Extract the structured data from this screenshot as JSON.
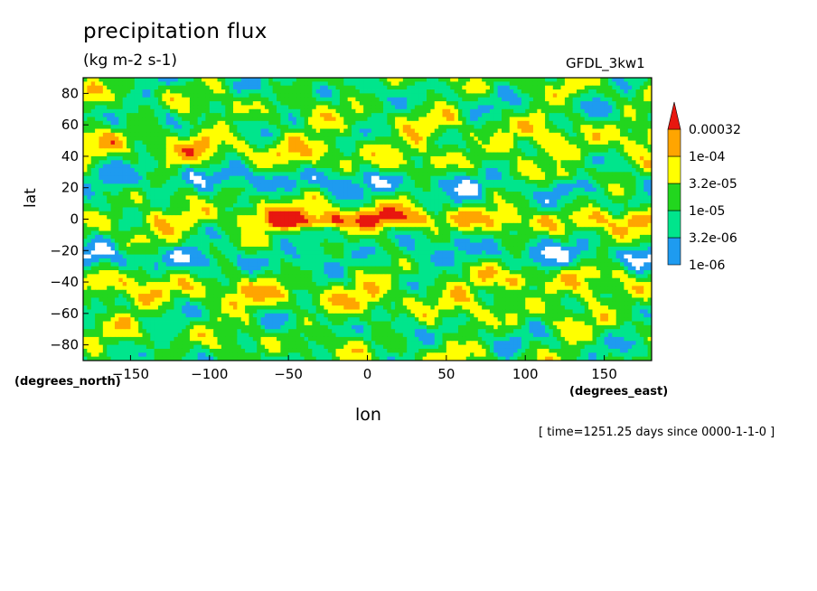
{
  "chart_data": {
    "type": "heatmap",
    "title": "precipitation flux",
    "subtitle": "(kg m-2 s-1)",
    "model": "GFDL_3kw1",
    "xlabel": "lon",
    "ylabel": "lat",
    "x_units": "(degrees_east)",
    "y_units": "(degrees_north)",
    "time_label": "[ time=1251.25 days since 0000-1-1-0 ]",
    "xlim": [
      -180,
      180
    ],
    "ylim": [
      -90,
      90
    ],
    "x_ticks": [
      -150,
      -100,
      -50,
      0,
      50,
      100,
      150
    ],
    "y_ticks": [
      -80,
      -60,
      -40,
      -20,
      0,
      20,
      40,
      60,
      80
    ],
    "x_tick_labels": [
      "−150",
      "−100",
      "−50",
      "0",
      "50",
      "100",
      "150"
    ],
    "y_tick_labels": [
      "−80",
      "−60",
      "−40",
      "−20",
      "0",
      "20",
      "40",
      "60",
      "80"
    ],
    "levels": [
      {
        "label": "1e-06",
        "value": 1e-06,
        "color": "#1e9bf0"
      },
      {
        "label": "3.2e-06",
        "value": 3.2e-06,
        "color": "#00e58c"
      },
      {
        "label": "1e-05",
        "value": 1e-05,
        "color": "#22d61e"
      },
      {
        "label": "3.2e-05",
        "value": 3.2e-05,
        "color": "#ffff00"
      },
      {
        "label": "1e-04",
        "value": 0.0001,
        "color": "#ffa500"
      },
      {
        "label": "0.00032",
        "value": 0.00032,
        "color": "#e8170f"
      }
    ],
    "below_color": "#ffffff",
    "grid": false,
    "legend_position": "right"
  }
}
